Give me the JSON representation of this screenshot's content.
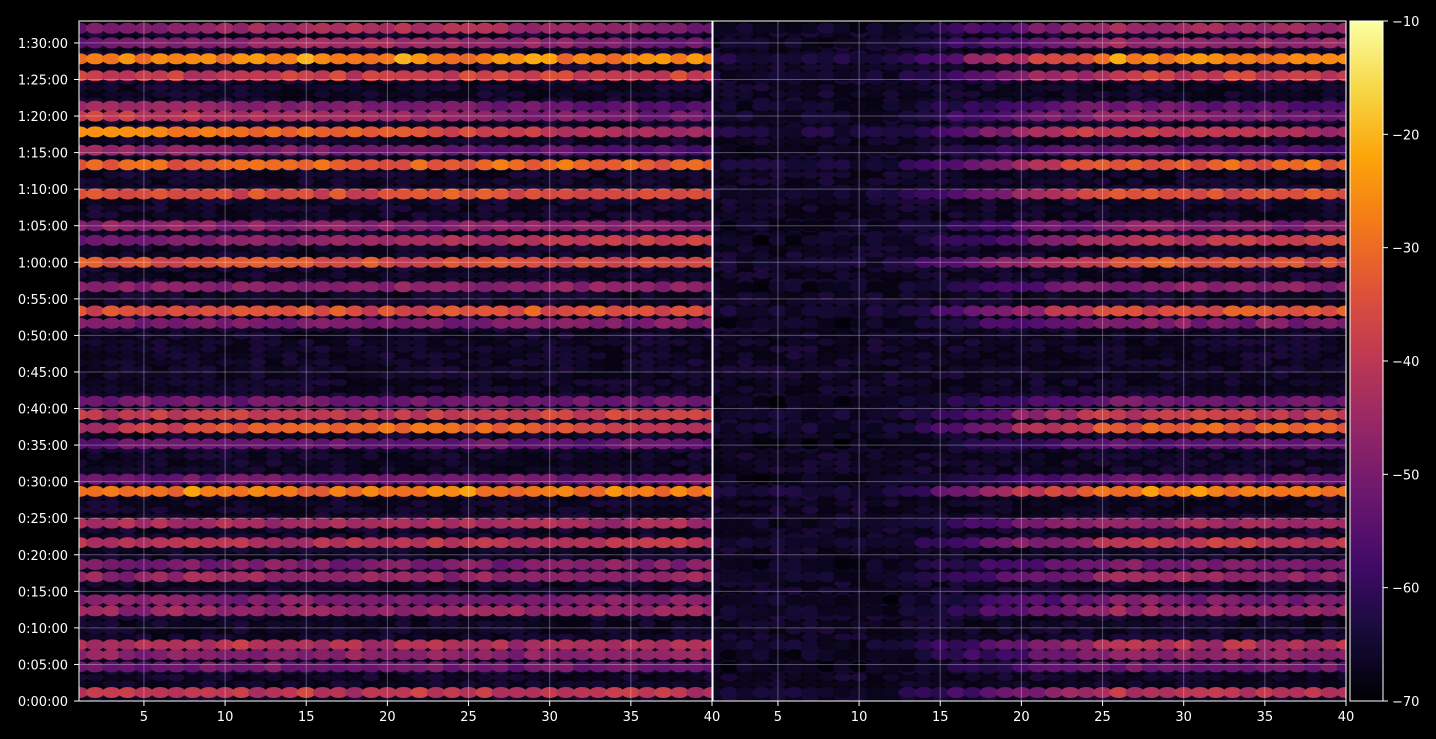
{
  "chart_data": {
    "type": "heatmap",
    "description_of_axes": "two side-by-side spectrogram-like heatmap panels sharing the y time axis and a single colorbar",
    "colormap": "inferno",
    "background_color": "#000000",
    "grid": true,
    "panels": [
      {
        "name": "",
        "xlim": [
          1,
          40
        ],
        "xticks": [
          "5",
          "10",
          "15",
          "20",
          "25",
          "30",
          "35",
          "40"
        ]
      },
      {
        "name": "",
        "xlim": [
          1,
          40
        ],
        "xticks": [
          "5",
          "10",
          "15",
          "20",
          "25",
          "30",
          "35",
          "40"
        ]
      }
    ],
    "yaxis": {
      "unit": "seconds",
      "ylim": [
        0,
        5580
      ],
      "tick_values": [
        0,
        300,
        600,
        900,
        1200,
        1500,
        1800,
        2100,
        2400,
        2700,
        3000,
        3300,
        3600,
        3900,
        4200,
        4500,
        4800,
        5100,
        5400
      ],
      "tick_labels": [
        "0:00:00",
        "0:05:00",
        "0:10:00",
        "0:15:00",
        "0:20:00",
        "0:25:00",
        "0:30:00",
        "0:35:00",
        "0:40:00",
        "0:45:00",
        "0:50:00",
        "0:55:00",
        "1:00:00",
        "1:05:00",
        "1:10:00",
        "1:15:00",
        "1:20:00",
        "1:25:00",
        "1:30:00"
      ]
    },
    "colorbar": {
      "range": [
        -70,
        -10
      ],
      "tick_values": [
        -70,
        -60,
        -50,
        -40,
        -30,
        -20,
        -10
      ],
      "tick_labels": [
        "−70",
        "−60",
        "−50",
        "−40",
        "−30",
        "−20",
        "−10"
      ],
      "location": "right"
    },
    "bands_description": "horizontal bands of intensity (dB) at given times (seconds); left panel strong across all x, right panel strong mostly for x>15",
    "bands": [
      {
        "t": 5520,
        "peak": -42,
        "ramp": "mid"
      },
      {
        "t": 5400,
        "peak": -44,
        "ramp": "mid"
      },
      {
        "t": 5270,
        "peak": -22,
        "ramp": "flat"
      },
      {
        "t": 5130,
        "peak": -36,
        "ramp": "flat"
      },
      {
        "t": 4880,
        "peak": -44,
        "ramp": "left"
      },
      {
        "t": 4800,
        "peak": -38,
        "ramp": "left"
      },
      {
        "t": 4670,
        "peak": -24,
        "ramp": "left"
      },
      {
        "t": 4520,
        "peak": -46,
        "ramp": "left"
      },
      {
        "t": 4400,
        "peak": -28,
        "ramp": "flat"
      },
      {
        "t": 4160,
        "peak": -32,
        "ramp": "flat"
      },
      {
        "t": 3900,
        "peak": -46,
        "ramp": "flat"
      },
      {
        "t": 3780,
        "peak": -36,
        "ramp": "right"
      },
      {
        "t": 3600,
        "peak": -32,
        "ramp": "flat"
      },
      {
        "t": 3400,
        "peak": -46,
        "ramp": "flat"
      },
      {
        "t": 3200,
        "peak": -32,
        "ramp": "flat"
      },
      {
        "t": 3100,
        "peak": -48,
        "ramp": "flat"
      },
      {
        "t": 2460,
        "peak": -50,
        "ramp": "flat"
      },
      {
        "t": 2350,
        "peak": -36,
        "ramp": "flat"
      },
      {
        "t": 2240,
        "peak": -30,
        "ramp": "mid"
      },
      {
        "t": 2110,
        "peak": -52,
        "ramp": "flat"
      },
      {
        "t": 1820,
        "peak": -50,
        "ramp": "flat"
      },
      {
        "t": 1720,
        "peak": -24,
        "ramp": "flat"
      },
      {
        "t": 1460,
        "peak": -42,
        "ramp": "flat"
      },
      {
        "t": 1300,
        "peak": -38,
        "ramp": "flat"
      },
      {
        "t": 1120,
        "peak": -48,
        "ramp": "flat"
      },
      {
        "t": 1020,
        "peak": -44,
        "ramp": "flat"
      },
      {
        "t": 830,
        "peak": -48,
        "ramp": "flat"
      },
      {
        "t": 740,
        "peak": -44,
        "ramp": "flat"
      },
      {
        "t": 460,
        "peak": -40,
        "ramp": "flat"
      },
      {
        "t": 380,
        "peak": -46,
        "ramp": "flat"
      },
      {
        "t": 280,
        "peak": -50,
        "ramp": "flat"
      },
      {
        "t": 70,
        "peak": -38,
        "ramp": "flat"
      }
    ]
  }
}
